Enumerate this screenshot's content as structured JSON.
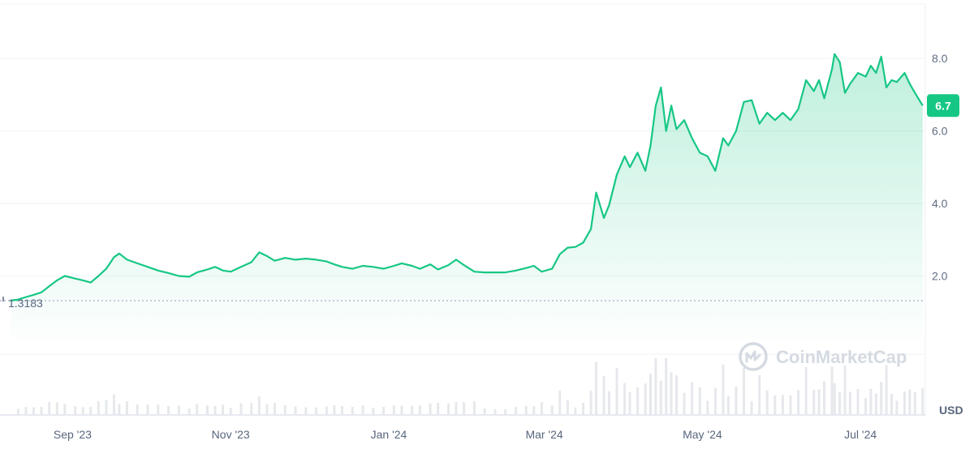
{
  "chart_data": {
    "type": "area",
    "currency_label": "USD",
    "ylim": [
      0,
      9.5
    ],
    "y_ticks": [
      {
        "value": 2.0,
        "label": "2.0"
      },
      {
        "value": 4.0,
        "label": "4.0"
      },
      {
        "value": 6.0,
        "label": "6.0"
      },
      {
        "value": 8.0,
        "label": "8.0"
      }
    ],
    "x_ticks": [
      {
        "date": "2023-09-01",
        "label": "Sep '23"
      },
      {
        "date": "2023-11-01",
        "label": "Nov '23"
      },
      {
        "date": "2024-01-01",
        "label": "Jan '24"
      },
      {
        "date": "2024-03-01",
        "label": "Mar '24"
      },
      {
        "date": "2024-05-01",
        "label": "May '24"
      },
      {
        "date": "2024-07-01",
        "label": "Jul '24"
      }
    ],
    "x_range": [
      "2023-08-04",
      "2024-07-26"
    ],
    "baseline": {
      "value": 1.3183,
      "label": "1.3183"
    },
    "current": {
      "value": 6.7,
      "label": "6.7"
    },
    "watermark": "CoinMarketCap",
    "colors": {
      "line": "#16c784",
      "fill_top": "#16c784",
      "badge": "#16c784",
      "grid": "#eff2f5",
      "volume": "#e6e8ec",
      "baseline": "#a6b0c3"
    },
    "series": [
      {
        "values": [
          [
            "2023-08-08",
            1.32
          ],
          [
            "2023-08-11",
            1.35
          ],
          [
            "2023-08-14",
            1.42
          ],
          [
            "2023-08-17",
            1.48
          ],
          [
            "2023-08-20",
            1.55
          ],
          [
            "2023-08-23",
            1.72
          ],
          [
            "2023-08-26",
            1.88
          ],
          [
            "2023-08-29",
            2.0
          ],
          [
            "2023-09-02",
            1.93
          ],
          [
            "2023-09-05",
            1.88
          ],
          [
            "2023-09-08",
            1.82
          ],
          [
            "2023-09-11",
            2.0
          ],
          [
            "2023-09-14",
            2.2
          ],
          [
            "2023-09-17",
            2.52
          ],
          [
            "2023-09-19",
            2.62
          ],
          [
            "2023-09-22",
            2.45
          ],
          [
            "2023-09-26",
            2.35
          ],
          [
            "2023-09-30",
            2.25
          ],
          [
            "2023-10-04",
            2.15
          ],
          [
            "2023-10-08",
            2.08
          ],
          [
            "2023-10-12",
            2.0
          ],
          [
            "2023-10-16",
            1.98
          ],
          [
            "2023-10-19",
            2.1
          ],
          [
            "2023-10-23",
            2.18
          ],
          [
            "2023-10-26",
            2.25
          ],
          [
            "2023-10-29",
            2.15
          ],
          [
            "2023-11-01",
            2.12
          ],
          [
            "2023-11-05",
            2.25
          ],
          [
            "2023-11-09",
            2.38
          ],
          [
            "2023-11-12",
            2.65
          ],
          [
            "2023-11-15",
            2.55
          ],
          [
            "2023-11-18",
            2.42
          ],
          [
            "2023-11-22",
            2.5
          ],
          [
            "2023-11-26",
            2.45
          ],
          [
            "2023-11-30",
            2.48
          ],
          [
            "2023-12-04",
            2.45
          ],
          [
            "2023-12-08",
            2.4
          ],
          [
            "2023-12-11",
            2.32
          ],
          [
            "2023-12-14",
            2.25
          ],
          [
            "2023-12-18",
            2.2
          ],
          [
            "2023-12-22",
            2.28
          ],
          [
            "2023-12-26",
            2.25
          ],
          [
            "2023-12-30",
            2.2
          ],
          [
            "2024-01-03",
            2.28
          ],
          [
            "2024-01-06",
            2.35
          ],
          [
            "2024-01-10",
            2.28
          ],
          [
            "2024-01-13",
            2.2
          ],
          [
            "2024-01-17",
            2.32
          ],
          [
            "2024-01-20",
            2.18
          ],
          [
            "2024-01-24",
            2.3
          ],
          [
            "2024-01-27",
            2.45
          ],
          [
            "2024-01-30",
            2.3
          ],
          [
            "2024-02-03",
            2.12
          ],
          [
            "2024-02-07",
            2.1
          ],
          [
            "2024-02-11",
            2.1
          ],
          [
            "2024-02-15",
            2.1
          ],
          [
            "2024-02-19",
            2.15
          ],
          [
            "2024-02-23",
            2.22
          ],
          [
            "2024-02-26",
            2.28
          ],
          [
            "2024-02-29",
            2.12
          ],
          [
            "2024-03-04",
            2.2
          ],
          [
            "2024-03-07",
            2.6
          ],
          [
            "2024-03-10",
            2.78
          ],
          [
            "2024-03-13",
            2.8
          ],
          [
            "2024-03-16",
            2.92
          ],
          [
            "2024-03-19",
            3.3
          ],
          [
            "2024-03-21",
            4.3
          ],
          [
            "2024-03-24",
            3.6
          ],
          [
            "2024-03-26",
            3.95
          ],
          [
            "2024-03-29",
            4.8
          ],
          [
            "2024-04-01",
            5.3
          ],
          [
            "2024-04-03",
            5.0
          ],
          [
            "2024-04-06",
            5.4
          ],
          [
            "2024-04-09",
            4.9
          ],
          [
            "2024-04-11",
            5.6
          ],
          [
            "2024-04-13",
            6.7
          ],
          [
            "2024-04-15",
            7.2
          ],
          [
            "2024-04-17",
            6.0
          ],
          [
            "2024-04-19",
            6.7
          ],
          [
            "2024-04-21",
            6.05
          ],
          [
            "2024-04-24",
            6.3
          ],
          [
            "2024-04-27",
            5.8
          ],
          [
            "2024-04-30",
            5.4
          ],
          [
            "2024-05-03",
            5.3
          ],
          [
            "2024-05-06",
            4.9
          ],
          [
            "2024-05-09",
            5.8
          ],
          [
            "2024-05-11",
            5.6
          ],
          [
            "2024-05-14",
            6.0
          ],
          [
            "2024-05-17",
            6.8
          ],
          [
            "2024-05-20",
            6.85
          ],
          [
            "2024-05-23",
            6.2
          ],
          [
            "2024-05-26",
            6.5
          ],
          [
            "2024-05-29",
            6.3
          ],
          [
            "2024-06-01",
            6.5
          ],
          [
            "2024-06-04",
            6.3
          ],
          [
            "2024-06-07",
            6.6
          ],
          [
            "2024-06-10",
            7.4
          ],
          [
            "2024-06-13",
            7.1
          ],
          [
            "2024-06-15",
            7.4
          ],
          [
            "2024-06-17",
            6.9
          ],
          [
            "2024-06-20",
            7.7
          ],
          [
            "2024-06-21",
            8.12
          ],
          [
            "2024-06-23",
            7.9
          ],
          [
            "2024-06-25",
            7.05
          ],
          [
            "2024-06-27",
            7.3
          ],
          [
            "2024-06-30",
            7.6
          ],
          [
            "2024-07-03",
            7.5
          ],
          [
            "2024-07-05",
            7.8
          ],
          [
            "2024-07-07",
            7.6
          ],
          [
            "2024-07-09",
            8.05
          ],
          [
            "2024-07-11",
            7.2
          ],
          [
            "2024-07-13",
            7.4
          ],
          [
            "2024-07-15",
            7.35
          ],
          [
            "2024-07-18",
            7.6
          ],
          [
            "2024-07-20",
            7.3
          ],
          [
            "2024-07-22",
            7.05
          ],
          [
            "2024-07-25",
            6.7
          ]
        ]
      }
    ]
  }
}
